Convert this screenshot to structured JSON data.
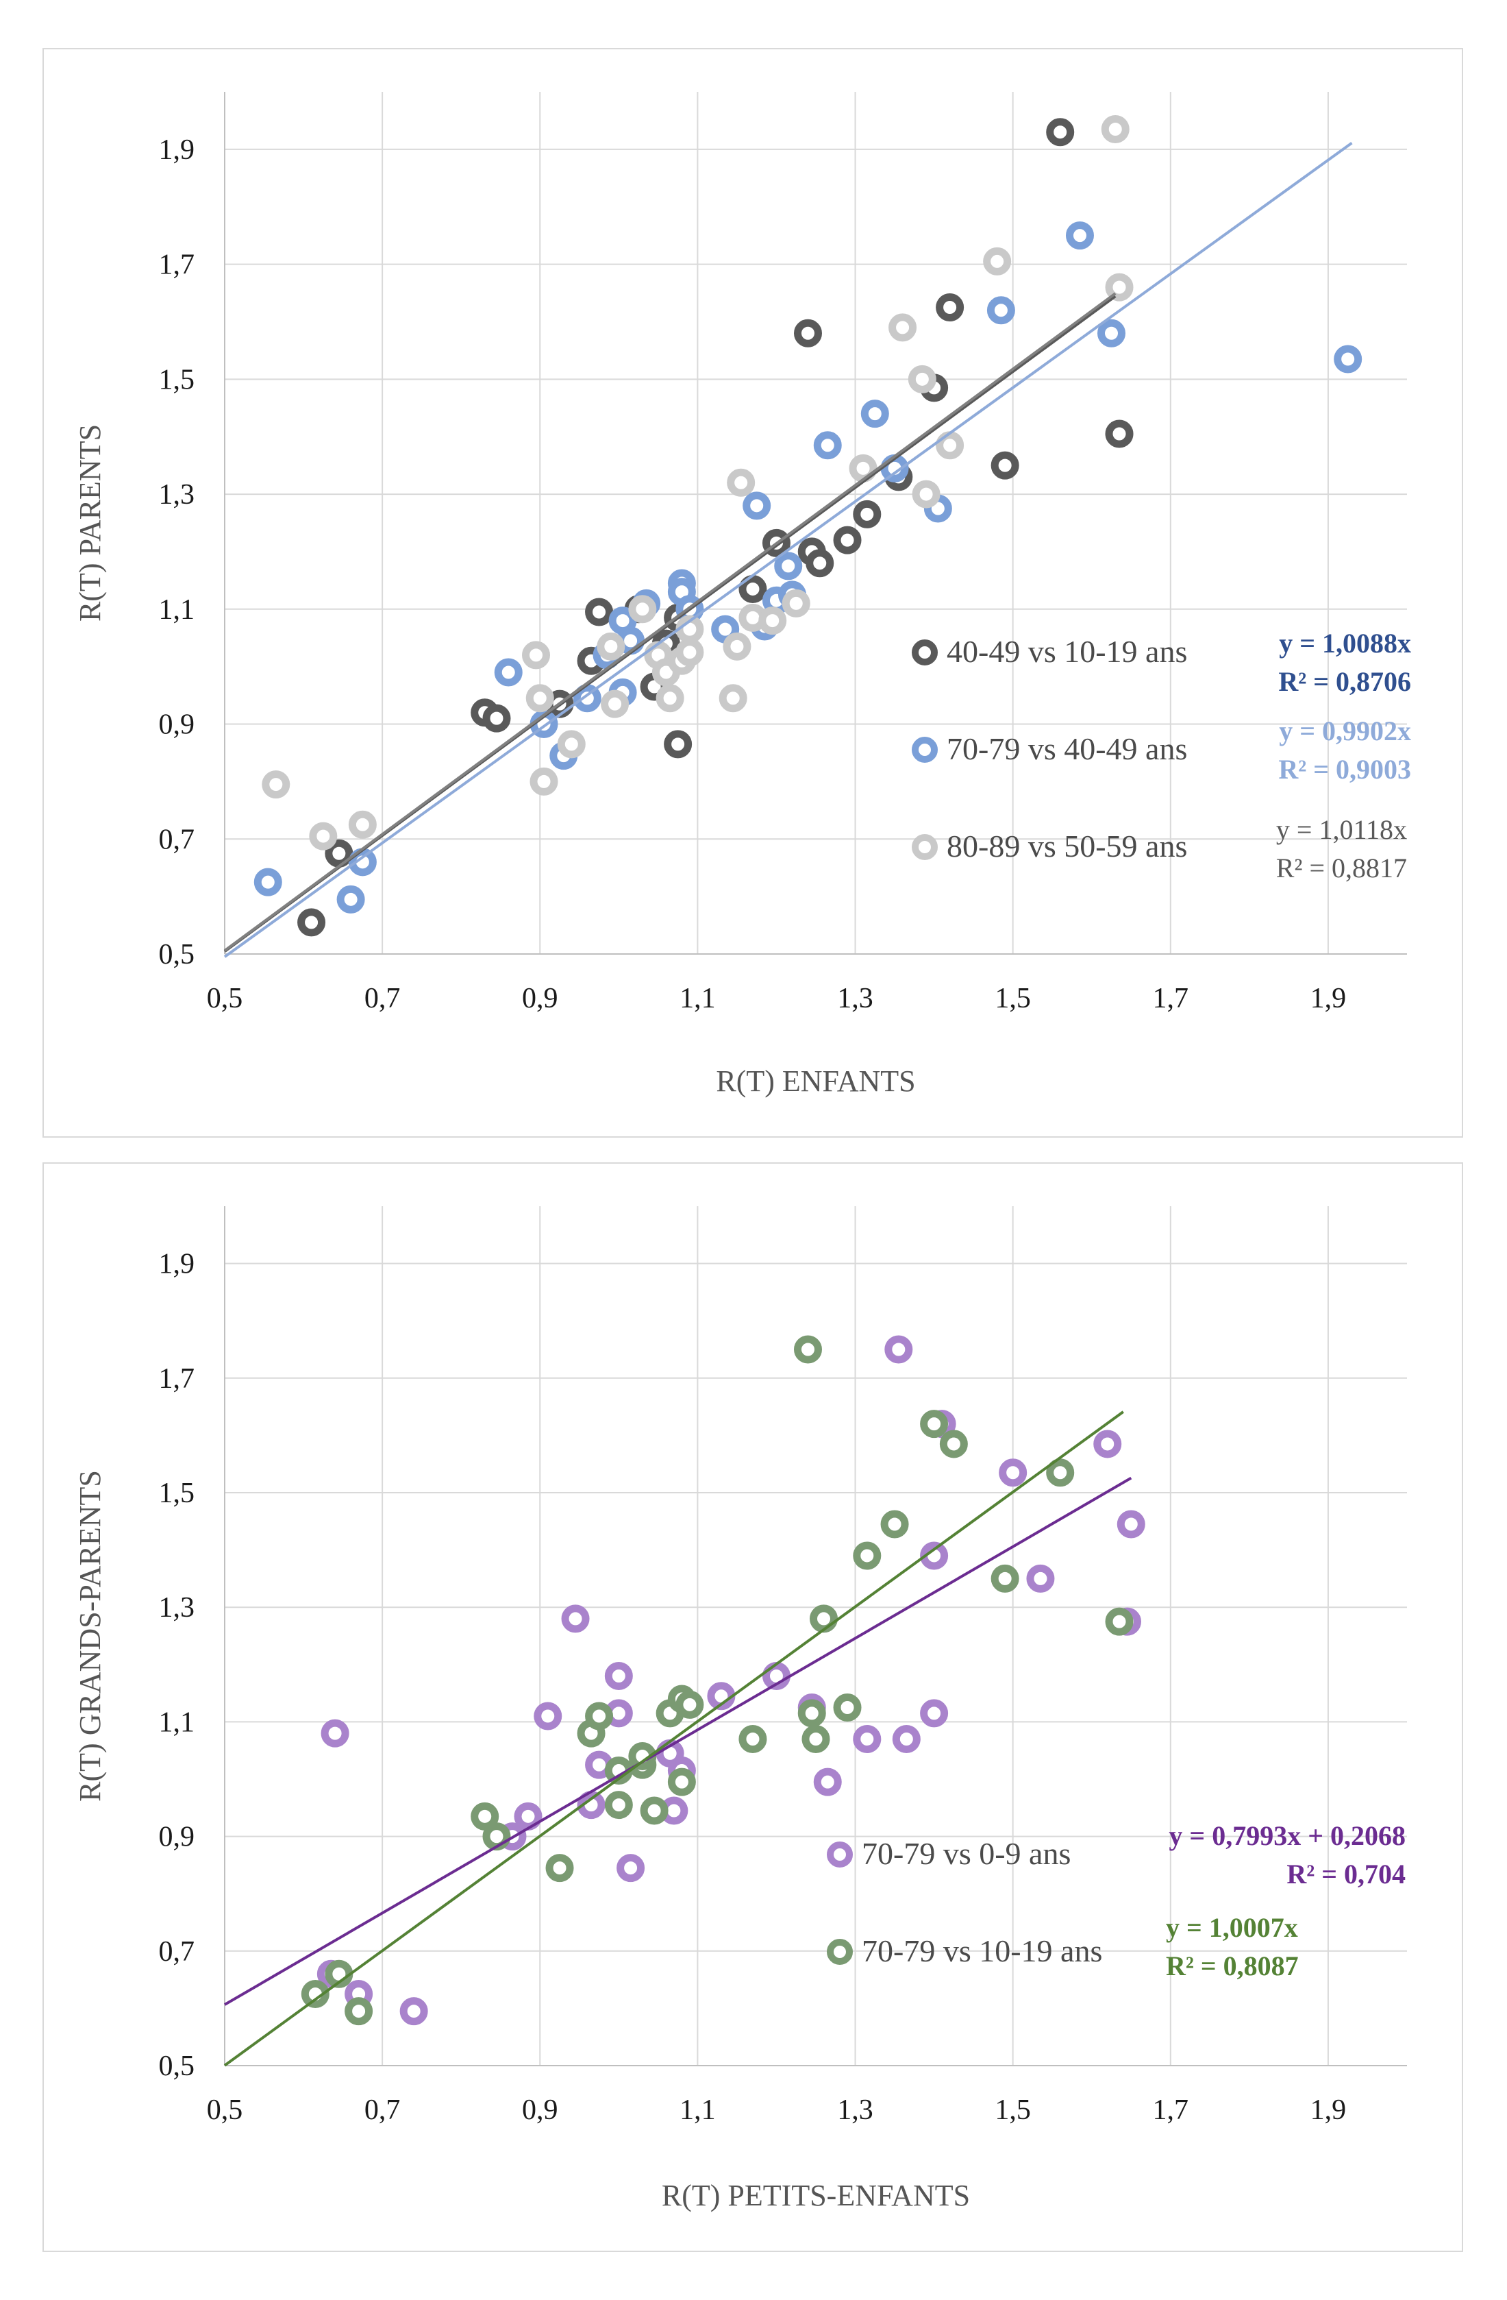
{
  "chart_data": [
    {
      "type": "scatter",
      "xlabel": "R(T) ENFANTS",
      "ylabel": "R(T) PARENTS",
      "xlim": [
        0.5,
        2.0
      ],
      "ylim": [
        0.5,
        2.0
      ],
      "xticks": [
        "0,5",
        "0,7",
        "0,9",
        "1,1",
        "1,3",
        "1,5",
        "1,7",
        "1,9"
      ],
      "yticks": [
        "0,5",
        "0,7",
        "0,9",
        "1,1",
        "1,3",
        "1,5",
        "1,7",
        "1,9"
      ],
      "grid": true,
      "legend_position": "lower-right",
      "series": [
        {
          "name": "40-49 vs 10-19 ans",
          "color": "#595959",
          "trend_color": "#595959",
          "trend": {
            "slope": 1.0088,
            "intercept": 0,
            "x_range": [
              0.5,
              1.63
            ]
          },
          "equation": "y = 1,0088x",
          "r2": "R² = 0,8706",
          "equation_color": "#2f4f8f",
          "equation_bold": true,
          "points": [
            [
              0.61,
              0.555
            ],
            [
              0.645,
              0.675
            ],
            [
              0.83,
              0.92
            ],
            [
              0.845,
              0.91
            ],
            [
              0.925,
              0.935
            ],
            [
              0.965,
              1.01
            ],
            [
              0.975,
              1.095
            ],
            [
              1.025,
              1.1
            ],
            [
              1.045,
              0.965
            ],
            [
              1.06,
              1.04
            ],
            [
              1.075,
              1.085
            ],
            [
              1.075,
              0.865
            ],
            [
              1.17,
              1.135
            ],
            [
              1.2,
              1.215
            ],
            [
              1.24,
              1.58
            ],
            [
              1.245,
              1.2
            ],
            [
              1.255,
              1.18
            ],
            [
              1.29,
              1.22
            ],
            [
              1.315,
              1.265
            ],
            [
              1.355,
              1.33
            ],
            [
              1.4,
              1.485
            ],
            [
              1.42,
              1.625
            ],
            [
              1.49,
              1.35
            ],
            [
              1.56,
              1.93
            ],
            [
              1.635,
              1.405
            ]
          ]
        },
        {
          "name": "70-79 vs 40-49 ans",
          "color": "#7a9fd8",
          "trend_color": "#8eaad9",
          "trend": {
            "slope": 0.9902,
            "intercept": 0,
            "x_range": [
              0.5,
              1.93
            ]
          },
          "equation": "y = 0,9902x",
          "r2": "R² = 0,9003",
          "equation_color": "#8eaad9",
          "equation_bold": true,
          "points": [
            [
              0.555,
              0.625
            ],
            [
              0.66,
              0.595
            ],
            [
              0.675,
              0.66
            ],
            [
              0.86,
              0.99
            ],
            [
              0.905,
              0.9
            ],
            [
              0.93,
              0.845
            ],
            [
              0.96,
              0.945
            ],
            [
              0.985,
              1.02
            ],
            [
              1.005,
              0.955
            ],
            [
              1.005,
              1.08
            ],
            [
              1.015,
              1.045
            ],
            [
              1.035,
              1.11
            ],
            [
              1.08,
              1.145
            ],
            [
              1.08,
              1.13
            ],
            [
              1.09,
              1.1
            ],
            [
              1.135,
              1.065
            ],
            [
              1.175,
              1.28
            ],
            [
              1.185,
              1.07
            ],
            [
              1.2,
              1.115
            ],
            [
              1.215,
              1.175
            ],
            [
              1.22,
              1.125
            ],
            [
              1.265,
              1.385
            ],
            [
              1.325,
              1.44
            ],
            [
              1.35,
              1.345
            ],
            [
              1.405,
              1.275
            ],
            [
              1.485,
              1.62
            ],
            [
              1.585,
              1.75
            ],
            [
              1.625,
              1.58
            ],
            [
              1.925,
              1.535
            ]
          ]
        },
        {
          "name": "80-89 vs 50-59 ans",
          "color": "#c9c9c9",
          "trend_color": "#808080",
          "trend": {
            "slope": 1.0118,
            "intercept": 0,
            "x_range": [
              0.5,
              1.63
            ]
          },
          "equation": "y = 1,0118x",
          "r2": "R² = 0,8817",
          "equation_color": "#595959",
          "equation_bold": false,
          "points": [
            [
              0.565,
              0.795
            ],
            [
              0.625,
              0.705
            ],
            [
              0.675,
              0.725
            ],
            [
              0.895,
              1.02
            ],
            [
              0.9,
              0.945
            ],
            [
              0.905,
              0.8
            ],
            [
              0.94,
              0.865
            ],
            [
              0.99,
              1.035
            ],
            [
              0.995,
              0.935
            ],
            [
              1.03,
              1.1
            ],
            [
              1.05,
              1.02
            ],
            [
              1.06,
              0.99
            ],
            [
              1.065,
              0.945
            ],
            [
              1.08,
              1.01
            ],
            [
              1.09,
              1.025
            ],
            [
              1.09,
              1.065
            ],
            [
              1.145,
              0.945
            ],
            [
              1.15,
              1.035
            ],
            [
              1.155,
              1.32
            ],
            [
              1.17,
              1.085
            ],
            [
              1.195,
              1.08
            ],
            [
              1.225,
              1.11
            ],
            [
              1.31,
              1.345
            ],
            [
              1.36,
              1.59
            ],
            [
              1.385,
              1.5
            ],
            [
              1.39,
              1.3
            ],
            [
              1.42,
              1.385
            ],
            [
              1.48,
              1.705
            ],
            [
              1.63,
              1.935
            ],
            [
              1.635,
              1.66
            ]
          ]
        }
      ]
    },
    {
      "type": "scatter",
      "xlabel": "R(T) PETITS-ENFANTS",
      "ylabel": "R(T) GRANDS-PARENTS",
      "xlim": [
        0.5,
        2.0
      ],
      "ylim": [
        0.5,
        2.0
      ],
      "xticks": [
        "0,5",
        "0,7",
        "0,9",
        "1,1",
        "1,3",
        "1,5",
        "1,7",
        "1,9"
      ],
      "yticks": [
        "0,5",
        "0,7",
        "0,9",
        "1,1",
        "1,3",
        "1,5",
        "1,7",
        "1,9"
      ],
      "grid": true,
      "legend_position": "lower-right",
      "series": [
        {
          "name": "70-79 vs 0-9 ans",
          "color": "#a983cc",
          "trend_color": "#6b2c91",
          "trend": {
            "slope": 0.7993,
            "intercept": 0.2068,
            "x_range": [
              0.5,
              1.65
            ]
          },
          "equation": "y = 0,7993x + 0,2068",
          "r2": "R² = 0,704",
          "equation_color": "#6b2c91",
          "equation_bold": true,
          "points": [
            [
              0.635,
              0.66
            ],
            [
              0.64,
              1.08
            ],
            [
              0.67,
              0.625
            ],
            [
              0.74,
              0.595
            ],
            [
              0.865,
              0.9
            ],
            [
              0.885,
              0.935
            ],
            [
              0.91,
              1.11
            ],
            [
              0.945,
              1.28
            ],
            [
              0.965,
              0.955
            ],
            [
              0.975,
              1.025
            ],
            [
              1.0,
              1.18
            ],
            [
              1.0,
              1.115
            ],
            [
              1.015,
              0.845
            ],
            [
              1.065,
              1.045
            ],
            [
              1.07,
              0.945
            ],
            [
              1.08,
              1.015
            ],
            [
              1.13,
              1.145
            ],
            [
              1.2,
              1.18
            ],
            [
              1.245,
              1.125
            ],
            [
              1.265,
              0.995
            ],
            [
              1.315,
              1.07
            ],
            [
              1.355,
              1.75
            ],
            [
              1.365,
              1.07
            ],
            [
              1.4,
              1.39
            ],
            [
              1.4,
              1.115
            ],
            [
              1.41,
              1.62
            ],
            [
              1.5,
              1.535
            ],
            [
              1.535,
              1.35
            ],
            [
              1.62,
              1.585
            ],
            [
              1.645,
              1.275
            ],
            [
              1.65,
              1.445
            ]
          ]
        },
        {
          "name": "70-79 vs 10-19 ans",
          "color": "#7a9a72",
          "trend_color": "#548235",
          "trend": {
            "slope": 1.0007,
            "intercept": 0,
            "x_range": [
              0.5,
              1.64
            ]
          },
          "equation": "y = 1,0007x",
          "r2": "R² = 0,8087",
          "equation_color": "#548235",
          "equation_bold": true,
          "points": [
            [
              0.615,
              0.625
            ],
            [
              0.645,
              0.66
            ],
            [
              0.67,
              0.595
            ],
            [
              0.83,
              0.935
            ],
            [
              0.845,
              0.9
            ],
            [
              0.925,
              0.845
            ],
            [
              0.965,
              1.08
            ],
            [
              0.975,
              1.11
            ],
            [
              1.0,
              1.015
            ],
            [
              1.0,
              0.955
            ],
            [
              1.03,
              1.025
            ],
            [
              1.03,
              1.04
            ],
            [
              1.045,
              0.945
            ],
            [
              1.065,
              1.115
            ],
            [
              1.08,
              1.14
            ],
            [
              1.08,
              0.995
            ],
            [
              1.09,
              1.13
            ],
            [
              1.17,
              1.07
            ],
            [
              1.24,
              1.75
            ],
            [
              1.245,
              1.115
            ],
            [
              1.25,
              1.07
            ],
            [
              1.26,
              1.28
            ],
            [
              1.315,
              1.39
            ],
            [
              1.29,
              1.125
            ],
            [
              1.35,
              1.445
            ],
            [
              1.4,
              1.62
            ],
            [
              1.425,
              1.585
            ],
            [
              1.49,
              1.35
            ],
            [
              1.56,
              1.535
            ],
            [
              1.635,
              1.275
            ]
          ]
        }
      ]
    }
  ]
}
